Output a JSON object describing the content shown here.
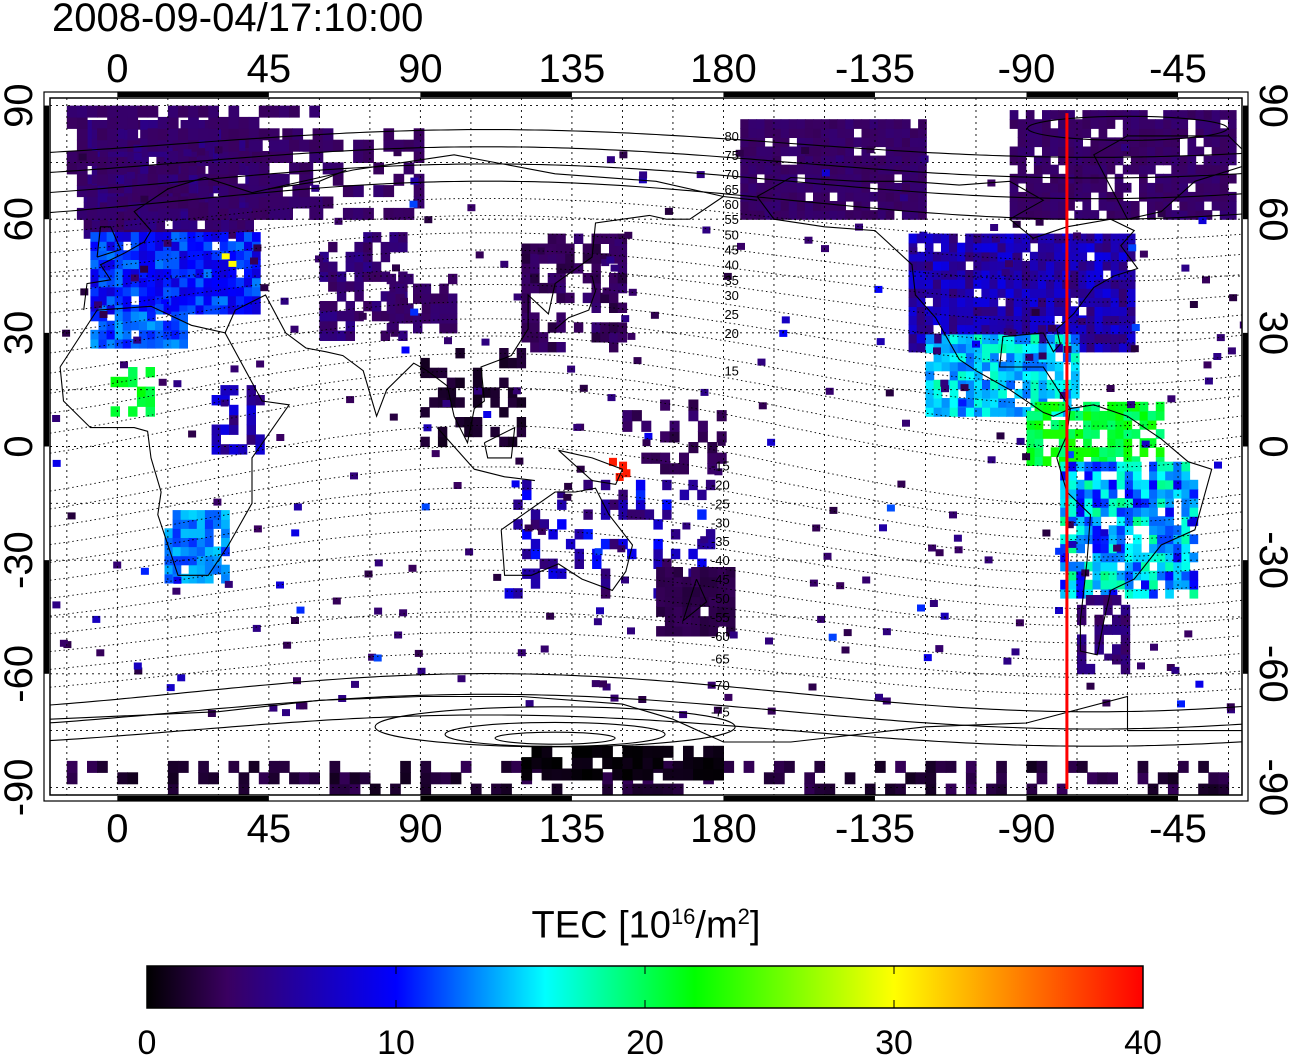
{
  "title": "2008-09-04/17:10:00",
  "colorbar": {
    "label_prefix": "TEC  [10",
    "label_exp1": "16",
    "label_mid": "/m",
    "label_exp2": "2",
    "label_suffix": "]",
    "ticks": [
      "0",
      "10",
      "20",
      "30",
      "40"
    ],
    "min": 0,
    "max": 40,
    "colors": [
      "#000000",
      "#3a0060",
      "#0000ff",
      "#00ffff",
      "#00ff00",
      "#ffff00",
      "#ff0000"
    ]
  },
  "map": {
    "lon_ticks_top": [
      "0",
      "45",
      "90",
      "135",
      "180",
      "-135",
      "-90",
      "-45"
    ],
    "lon_ticks_bottom": [
      "0",
      "45",
      "90",
      "135",
      "180",
      "-135",
      "-90",
      "-45"
    ],
    "lon_tick_values": [
      0,
      45,
      90,
      135,
      180,
      225,
      270,
      315
    ],
    "lat_ticks_left": [
      "90",
      "60",
      "30",
      "0",
      "-30",
      "-60",
      "-90"
    ],
    "lat_ticks_right": [
      "90",
      "60",
      "30",
      "0",
      "-30",
      "-60",
      "-90"
    ],
    "lat_tick_values": [
      90,
      60,
      30,
      0,
      -30,
      -60,
      -90
    ],
    "lon_range": [
      -20,
      334
    ],
    "lat_range": [
      -92,
      92
    ],
    "red_meridian_lon": -78,
    "contour_labels_north": [
      "80",
      "75",
      "70",
      "65",
      "60",
      "55",
      "50",
      "45",
      "40",
      "35",
      "30",
      "25",
      "20",
      "15"
    ],
    "contour_labels_south": [
      "-15",
      "-20",
      "-25",
      "-30",
      "-35",
      "-40",
      "-45",
      "-50",
      "-55",
      "-60",
      "-65",
      "-70",
      "-75"
    ]
  }
}
